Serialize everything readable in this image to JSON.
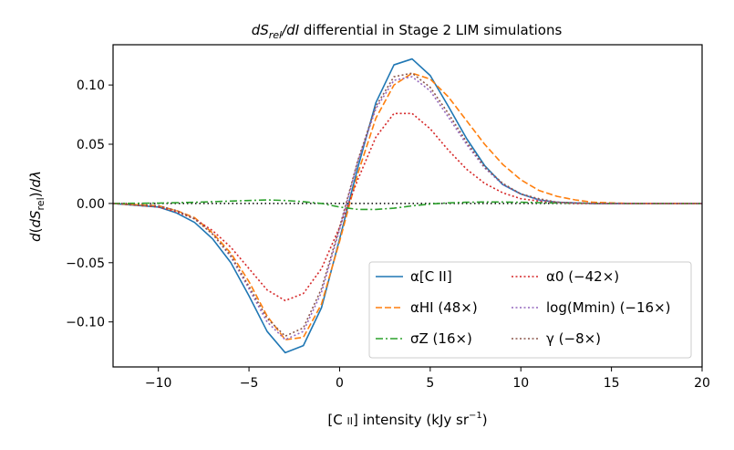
{
  "chart_data": {
    "type": "line",
    "title": "dS_rel/dI differential in Stage 2 LIM simulations",
    "xlabel": "[C II] intensity (kJy sr⁻¹)",
    "ylabel": "d(dS_rel)/dλ",
    "xlim": [
      -12.5,
      20
    ],
    "ylim": [
      -0.138,
      0.134
    ],
    "x_ticks": [
      -10,
      -5,
      0,
      5,
      10,
      15,
      20
    ],
    "x_tick_labels": [
      "−10",
      "−5",
      "0",
      "5",
      "10",
      "15",
      "20"
    ],
    "y_ticks": [
      -0.1,
      -0.05,
      0.0,
      0.05,
      0.1
    ],
    "y_tick_labels": [
      "−0.10",
      "−0.05",
      "0.00",
      "0.05",
      "0.10"
    ],
    "legend_position": "lower-right",
    "legend_columns": 2,
    "grid": false,
    "reference_line": {
      "y": 0,
      "style": "dotted",
      "color": "#000000"
    },
    "series": [
      {
        "name": "α[C II]",
        "color": "#1f77b4",
        "dash": "solid",
        "x": [
          -12.5,
          -10,
          -9,
          -8,
          -7,
          -6,
          -5,
          -4,
          -3,
          -2,
          -1,
          0,
          1,
          2,
          3,
          4,
          5,
          6,
          7,
          8,
          9,
          10,
          11,
          12,
          13,
          14,
          15,
          16,
          17,
          18,
          19,
          20
        ],
        "y": [
          0,
          -0.003,
          -0.008,
          -0.016,
          -0.03,
          -0.05,
          -0.078,
          -0.108,
          -0.126,
          -0.12,
          -0.088,
          -0.03,
          0.03,
          0.085,
          0.117,
          0.122,
          0.108,
          0.082,
          0.055,
          0.032,
          0.016,
          0.008,
          0.003,
          0.001,
          0.0005,
          0,
          0,
          0,
          0,
          0,
          0,
          0
        ]
      },
      {
        "name": "αHI (48×)",
        "color": "#ff7f0e",
        "dash": "dashed",
        "x": [
          -12.5,
          -10,
          -9,
          -8,
          -7,
          -6,
          -5,
          -4,
          -3,
          -2,
          -1,
          0,
          1,
          2,
          3,
          4,
          5,
          6,
          7,
          8,
          9,
          10,
          11,
          12,
          13,
          14,
          15,
          16,
          17,
          18,
          19,
          20
        ],
        "y": [
          0,
          -0.002,
          -0.006,
          -0.012,
          -0.025,
          -0.042,
          -0.066,
          -0.095,
          -0.115,
          -0.113,
          -0.085,
          -0.032,
          0.025,
          0.072,
          0.1,
          0.11,
          0.105,
          0.09,
          0.07,
          0.05,
          0.033,
          0.02,
          0.011,
          0.006,
          0.003,
          0.001,
          0.0005,
          0,
          0,
          0,
          0,
          0
        ]
      },
      {
        "name": "σZ (16×)",
        "color": "#2ca02c",
        "dash": "dashdot",
        "x": [
          -12.5,
          -10,
          -8,
          -6,
          -5,
          -4,
          -3,
          -2,
          -1,
          0,
          1,
          2,
          3,
          4,
          5,
          6,
          7,
          8,
          9,
          10,
          11,
          12,
          14,
          16,
          18,
          20
        ],
        "y": [
          0,
          0.0003,
          0.001,
          0.002,
          0.0025,
          0.003,
          0.0025,
          0.0015,
          0,
          -0.003,
          -0.005,
          -0.005,
          -0.004,
          -0.002,
          -0.0005,
          0.0005,
          0.001,
          0.0012,
          0.0012,
          0.001,
          0.0007,
          0.0004,
          0.0001,
          0,
          0,
          0
        ]
      },
      {
        "name": "α0 (−42×)",
        "color": "#d62728",
        "dash": "dotted",
        "x": [
          -12.5,
          -10,
          -9,
          -8,
          -7,
          -6,
          -5,
          -4,
          -3,
          -2,
          -1,
          0,
          1,
          2,
          3,
          4,
          5,
          6,
          7,
          8,
          9,
          10,
          11,
          12,
          13,
          14,
          15,
          16,
          17,
          18,
          19,
          20
        ],
        "y": [
          0,
          -0.003,
          -0.007,
          -0.013,
          -0.023,
          -0.037,
          -0.055,
          -0.073,
          -0.082,
          -0.076,
          -0.055,
          -0.02,
          0.02,
          0.056,
          0.076,
          0.076,
          0.063,
          0.045,
          0.029,
          0.017,
          0.009,
          0.004,
          0.002,
          0.001,
          0,
          0,
          0,
          0,
          0,
          0,
          0,
          0
        ]
      },
      {
        "name": "log(Mmin) (−16×)",
        "color": "#9467bd",
        "dash": "dotted",
        "x": [
          -12.5,
          -10,
          -9,
          -8,
          -7,
          -6,
          -5,
          -4,
          -3,
          -2,
          -1,
          0,
          1,
          2,
          3,
          4,
          5,
          6,
          7,
          8,
          9,
          10,
          11,
          12,
          13,
          14,
          15,
          16,
          17,
          18,
          19,
          20
        ],
        "y": [
          0,
          -0.002,
          -0.006,
          -0.013,
          -0.026,
          -0.045,
          -0.072,
          -0.1,
          -0.115,
          -0.108,
          -0.075,
          -0.022,
          0.035,
          0.08,
          0.104,
          0.107,
          0.095,
          0.073,
          0.05,
          0.03,
          0.016,
          0.008,
          0.003,
          0.001,
          0.0005,
          0,
          0,
          0,
          0,
          0,
          0,
          0
        ]
      },
      {
        "name": "γ (−8×)",
        "color": "#8c564b",
        "dash": "dotted",
        "x": [
          -12.5,
          -10,
          -9,
          -8,
          -7,
          -6,
          -5,
          -4,
          -3,
          -2,
          -1,
          0,
          1,
          2,
          3,
          4,
          5,
          6,
          7,
          8,
          9,
          10,
          11,
          12,
          13,
          14,
          15,
          16,
          17,
          18,
          19,
          20
        ],
        "y": [
          0,
          -0.002,
          -0.006,
          -0.013,
          -0.026,
          -0.044,
          -0.07,
          -0.097,
          -0.112,
          -0.105,
          -0.072,
          -0.02,
          0.036,
          0.082,
          0.107,
          0.11,
          0.098,
          0.076,
          0.052,
          0.031,
          0.017,
          0.008,
          0.004,
          0.001,
          0.0005,
          0,
          0,
          0,
          0,
          0,
          0,
          0
        ]
      }
    ]
  }
}
